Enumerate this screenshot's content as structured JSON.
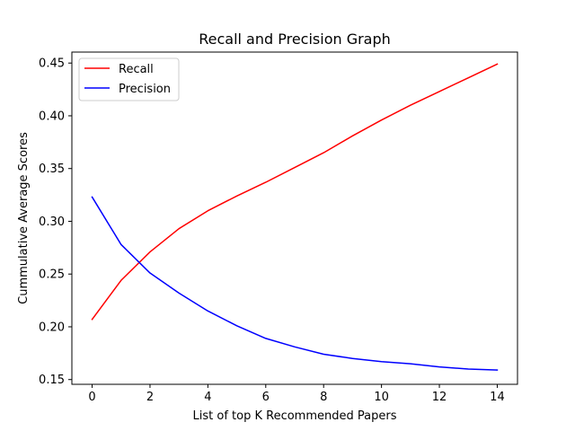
{
  "chart_data": {
    "type": "line",
    "title": "Recall and Precision Graph",
    "xlabel": "List of top K Recommended Papers",
    "ylabel": "Cummulative Average Scores",
    "xlim": [
      -0.7,
      14.7
    ],
    "ylim": [
      0.1455,
      0.4604
    ],
    "x": [
      0,
      1,
      2,
      3,
      4,
      5,
      6,
      7,
      8,
      9,
      10,
      11,
      12,
      13,
      14
    ],
    "xticks": [
      0,
      2,
      4,
      6,
      8,
      10,
      12,
      14
    ],
    "yticks": [
      0.15,
      0.2,
      0.25,
      0.3,
      0.35,
      0.4,
      0.45
    ],
    "ytick_labels": [
      "0.15",
      "0.20",
      "0.25",
      "0.30",
      "0.35",
      "0.40",
      "0.45"
    ],
    "grid": false,
    "legend_position": "top-left",
    "series": [
      {
        "name": "Recall",
        "color": "#ff0000",
        "values": [
          0.207,
          0.244,
          0.271,
          0.293,
          0.31,
          0.324,
          0.337,
          0.351,
          0.365,
          0.381,
          0.396,
          0.41,
          0.423,
          0.436,
          0.449
        ]
      },
      {
        "name": "Precision",
        "color": "#0000ff",
        "values": [
          0.323,
          0.278,
          0.251,
          0.232,
          0.215,
          0.201,
          0.189,
          0.181,
          0.174,
          0.17,
          0.167,
          0.165,
          0.162,
          0.16,
          0.159
        ]
      }
    ]
  }
}
